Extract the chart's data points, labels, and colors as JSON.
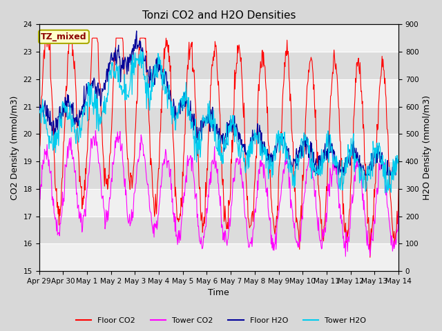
{
  "title": "Tonzi CO2 and H2O Densities",
  "xlabel": "Time",
  "ylabel_left": "CO2 Density (mmol/m3)",
  "ylabel_right": "H2O Density (mmol/m3)",
  "ylim_left": [
    15.0,
    24.0
  ],
  "ylim_right": [
    0,
    900
  ],
  "yticks_left": [
    15.0,
    16.0,
    17.0,
    18.0,
    19.0,
    20.0,
    21.0,
    22.0,
    23.0,
    24.0
  ],
  "yticks_right": [
    0,
    100,
    200,
    300,
    400,
    500,
    600,
    700,
    800,
    900
  ],
  "annotation_text": "TZ_mixed",
  "annotation_color": "#8B0000",
  "annotation_bg": "#FFFFCC",
  "annotation_border": "#AAAA00",
  "colors": {
    "floor_co2": "#FF0000",
    "tower_co2": "#FF00FF",
    "floor_h2o": "#000099",
    "tower_h2o": "#00CCEE"
  },
  "legend_labels": [
    "Floor CO2",
    "Tower CO2",
    "Floor H2O",
    "Tower H2O"
  ],
  "bg_color": "#D8D8D8",
  "plot_bg_light": "#F0F0F0",
  "plot_bg_dark": "#DCDCDC",
  "title_fontsize": 11,
  "label_fontsize": 9,
  "tick_fontsize": 7.5,
  "legend_fontsize": 8,
  "seed": 12345
}
